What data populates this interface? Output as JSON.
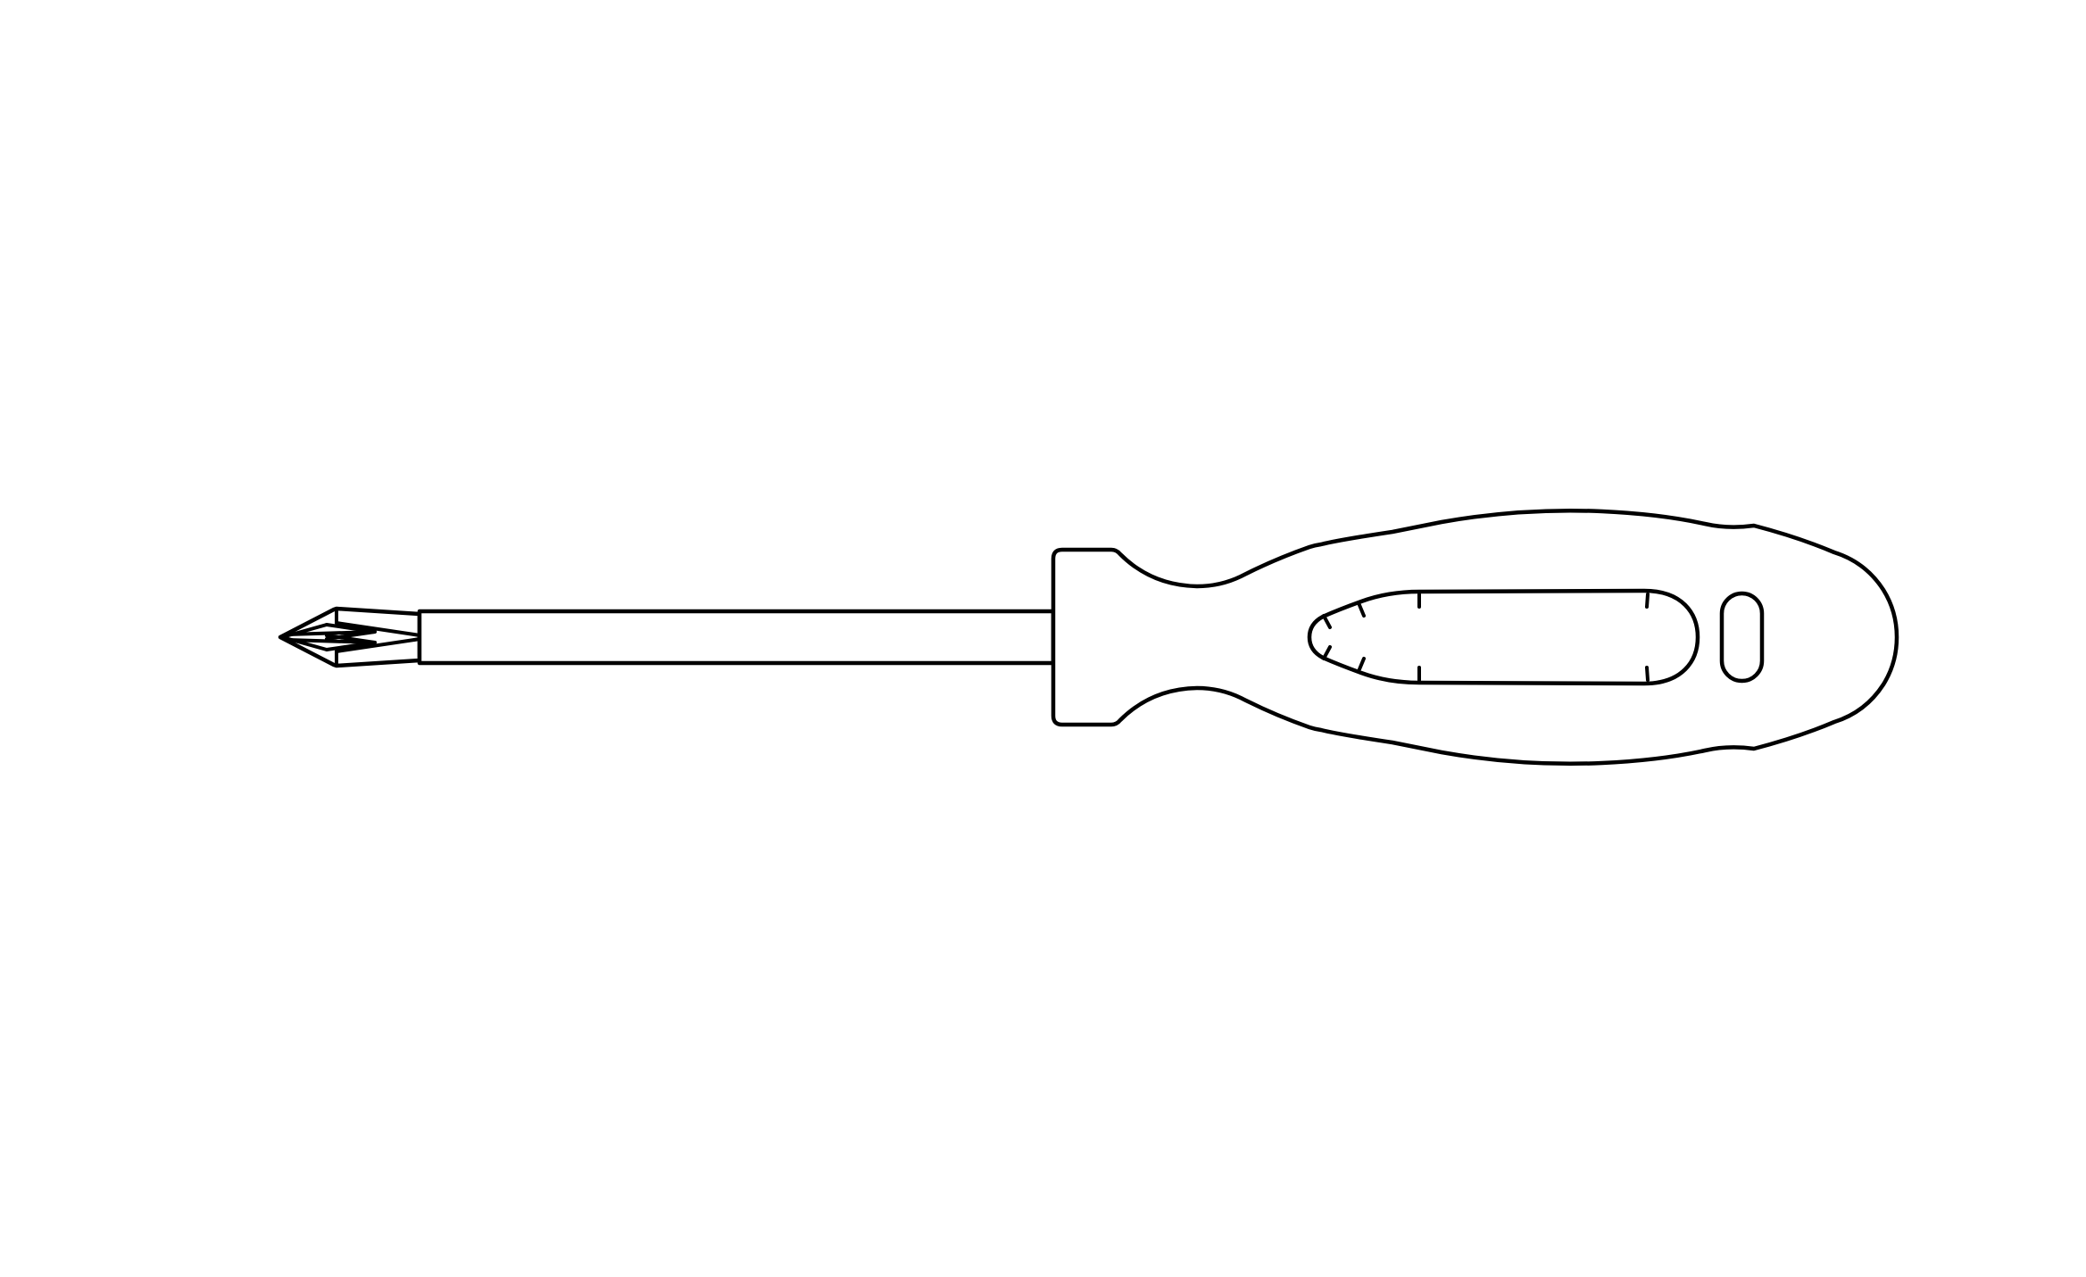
{
  "colors": {
    "background": "#ffffff",
    "stroke": "#000000"
  },
  "illustration": {
    "icon": "screwdriver-icon"
  }
}
